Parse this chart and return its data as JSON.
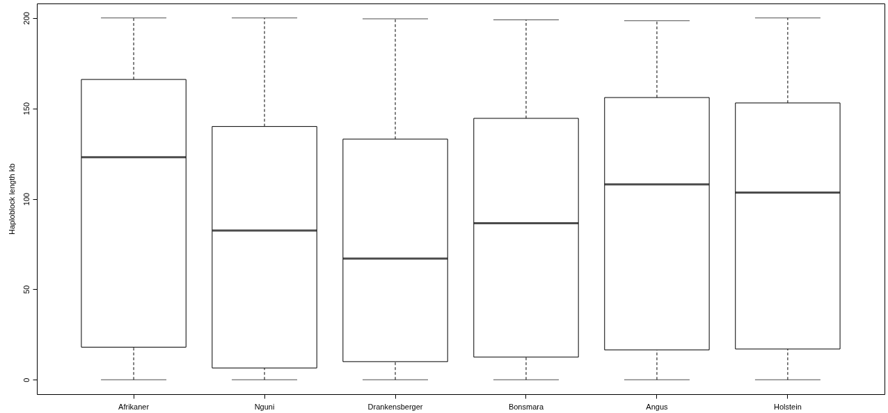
{
  "chart_data": {
    "type": "box",
    "ylabel": "Haploblock length kb",
    "categories": [
      "Afrikaner",
      "Nguni",
      "Drankensberger",
      "Bonsmara",
      "Angus",
      "Holstein"
    ],
    "boxes": [
      {
        "low": 0,
        "q1": 18,
        "median": 123,
        "q3": 166,
        "high": 200
      },
      {
        "low": 0,
        "q1": 6.5,
        "median": 82.5,
        "q3": 140,
        "high": 200
      },
      {
        "low": 0,
        "q1": 10,
        "median": 67,
        "q3": 133,
        "high": 199.5
      },
      {
        "low": 0,
        "q1": 12.5,
        "median": 86.5,
        "q3": 144.5,
        "high": 199
      },
      {
        "low": 0,
        "q1": 16.5,
        "median": 108,
        "q3": 156,
        "high": 198.5
      },
      {
        "low": 0,
        "q1": 17,
        "median": 103.5,
        "q3": 153,
        "high": 200
      }
    ],
    "ylim": [
      -8,
      208
    ],
    "yticks": [
      0,
      50,
      100,
      150,
      200
    ],
    "grid": false
  }
}
